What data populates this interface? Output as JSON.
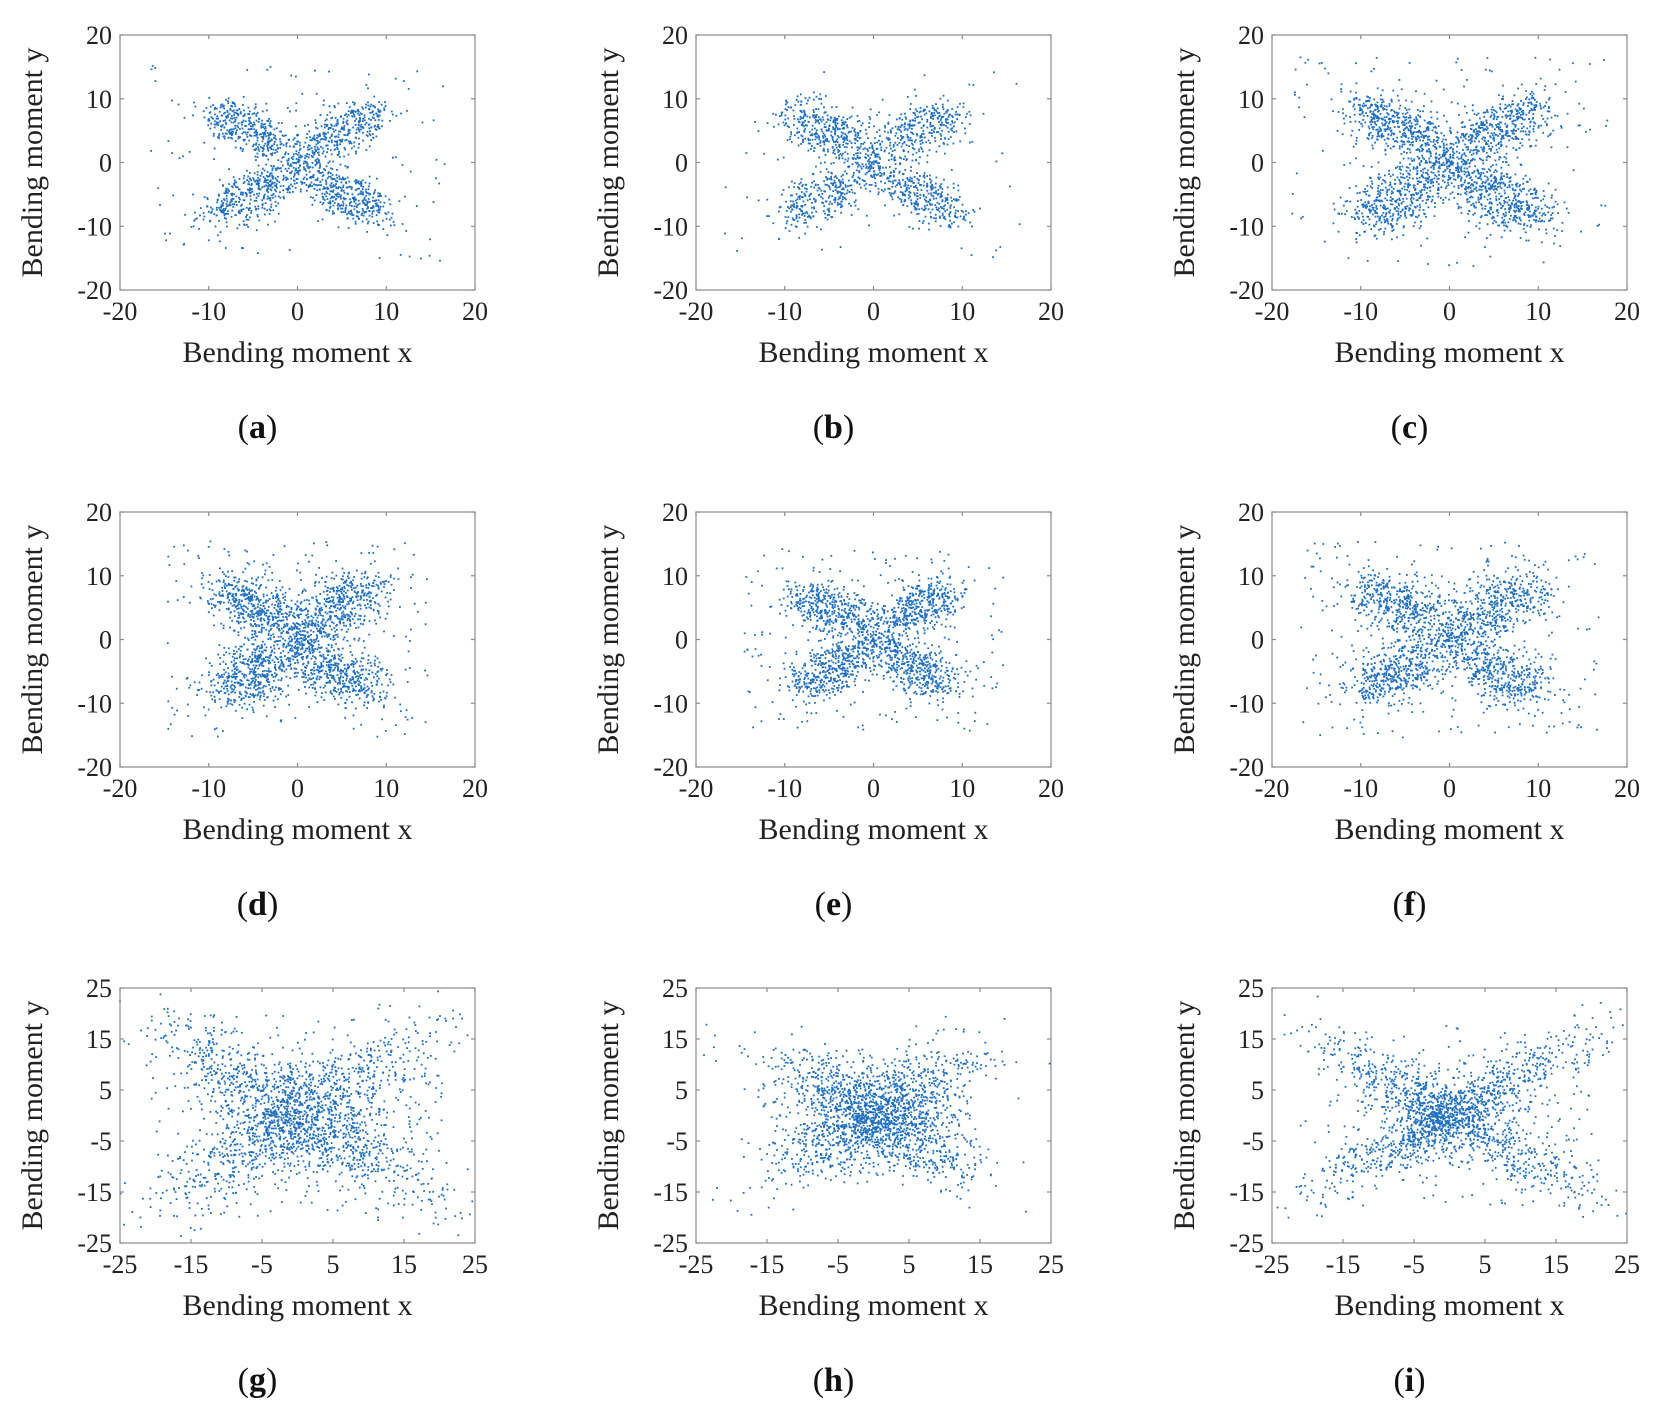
{
  "figure": {
    "marker_color": "#1f6fbf",
    "description_layout": "3x3 grid of scatter plots"
  },
  "chart_data": [
    {
      "type": "scatter",
      "panel": "(a)",
      "panel_letter": "a",
      "xlabel": "Bending moment x",
      "ylabel": "Bending moment y",
      "xlim": [
        -20,
        20
      ],
      "ylim": [
        -20,
        20
      ],
      "xticks": [
        -20,
        -10,
        0,
        10,
        20
      ],
      "yticks": [
        -20,
        -10,
        0,
        10,
        20
      ],
      "xtick_labels": [
        "-20",
        "-10",
        "0",
        "10",
        "20"
      ],
      "ytick_labels": [
        "-20",
        "-10",
        "0",
        "10",
        "20"
      ],
      "pattern": {
        "shape": "four-lobe",
        "lobe_x": 8,
        "lobe_y": 7,
        "spread": 1.6,
        "noise": 0.08,
        "points": 1700,
        "seed": 11
      }
    },
    {
      "type": "scatter",
      "panel": "(b)",
      "panel_letter": "b",
      "xlabel": "Bending moment x",
      "ylabel": "Bending moment y",
      "xlim": [
        -20,
        20
      ],
      "ylim": [
        -20,
        20
      ],
      "xticks": [
        -20,
        -10,
        0,
        10,
        20
      ],
      "yticks": [
        -20,
        -10,
        0,
        10,
        20
      ],
      "xtick_labels": [
        "-20",
        "-10",
        "0",
        "10",
        "20"
      ],
      "ytick_labels": [
        "-20",
        "-10",
        "0",
        "10",
        "20"
      ],
      "pattern": {
        "shape": "four-lobe",
        "lobe_x": 8,
        "lobe_y": 7,
        "spread": 1.9,
        "noise": 0.05,
        "points": 1500,
        "seed": 23
      }
    },
    {
      "type": "scatter",
      "panel": "(c)",
      "panel_letter": "c",
      "xlabel": "Bending moment x",
      "ylabel": "Bending moment y",
      "xlim": [
        -20,
        20
      ],
      "ylim": [
        -20,
        20
      ],
      "xticks": [
        -20,
        -10,
        0,
        10,
        20
      ],
      "yticks": [
        -20,
        -10,
        0,
        10,
        20
      ],
      "xtick_labels": [
        "-20",
        "-10",
        "0",
        "10",
        "20"
      ],
      "ytick_labels": [
        "-20",
        "-10",
        "0",
        "10",
        "20"
      ],
      "pattern": {
        "shape": "four-lobe",
        "lobe_x": 8.5,
        "lobe_y": 7.5,
        "spread": 2.6,
        "noise": 0.06,
        "points": 2200,
        "seed": 37
      }
    },
    {
      "type": "scatter",
      "panel": "(d)",
      "panel_letter": "d",
      "xlabel": "Bending moment x",
      "ylabel": "Bending moment y",
      "xlim": [
        -20,
        20
      ],
      "ylim": [
        -20,
        20
      ],
      "xticks": [
        -20,
        -10,
        0,
        10,
        20
      ],
      "yticks": [
        -20,
        -10,
        0,
        10,
        20
      ],
      "xtick_labels": [
        "-20",
        "-10",
        "0",
        "10",
        "20"
      ],
      "ytick_labels": [
        "-20",
        "-10",
        "0",
        "10",
        "20"
      ],
      "pattern": {
        "shape": "four-lobe",
        "lobe_x": 7,
        "lobe_y": 7,
        "spread": 3.0,
        "noise": 0.1,
        "points": 2200,
        "seed": 41
      }
    },
    {
      "type": "scatter",
      "panel": "(e)",
      "panel_letter": "e",
      "xlabel": "Bending moment x",
      "ylabel": "Bending moment y",
      "xlim": [
        -20,
        20
      ],
      "ylim": [
        -20,
        20
      ],
      "xticks": [
        -20,
        -10,
        0,
        10,
        20
      ],
      "yticks": [
        -20,
        -10,
        0,
        10,
        20
      ],
      "xtick_labels": [
        "-20",
        "-10",
        "0",
        "10",
        "20"
      ],
      "ytick_labels": [
        "-20",
        "-10",
        "0",
        "10",
        "20"
      ],
      "pattern": {
        "shape": "four-lobe",
        "lobe_x": 7,
        "lobe_y": 6.5,
        "spread": 2.4,
        "noise": 0.12,
        "points": 1900,
        "seed": 53
      }
    },
    {
      "type": "scatter",
      "panel": "(f)",
      "panel_letter": "f",
      "xlabel": "Bending moment x",
      "ylabel": "Bending moment y",
      "xlim": [
        -20,
        20
      ],
      "ylim": [
        -20,
        20
      ],
      "xticks": [
        -20,
        -10,
        0,
        10,
        20
      ],
      "yticks": [
        -20,
        -10,
        0,
        10,
        20
      ],
      "xtick_labels": [
        "-20",
        "-10",
        "0",
        "10",
        "20"
      ],
      "ytick_labels": [
        "-20",
        "-10",
        "0",
        "10",
        "20"
      ],
      "pattern": {
        "shape": "four-lobe",
        "lobe_x": 8,
        "lobe_y": 7,
        "spread": 2.8,
        "noise": 0.12,
        "points": 2100,
        "seed": 67
      }
    },
    {
      "type": "scatter",
      "panel": "(g)",
      "panel_letter": "g",
      "xlabel": "Bending moment x",
      "ylabel": "Bending moment y",
      "xlim": [
        -25,
        25
      ],
      "ylim": [
        -25,
        25
      ],
      "xticks": [
        -25,
        -15,
        -5,
        5,
        15,
        25
      ],
      "yticks": [
        -25,
        -15,
        -5,
        5,
        15,
        25
      ],
      "xtick_labels": [
        "-25",
        "-15",
        "-5",
        "5",
        "15",
        "25"
      ],
      "ytick_labels": [
        "-25",
        "-15",
        "-5",
        "5",
        "15",
        "25"
      ],
      "pattern": {
        "shape": "x-diagonal",
        "lobe_x": 10,
        "lobe_y": 9,
        "spread": 3.6,
        "noise": 0.1,
        "points": 2300,
        "seed": 79
      }
    },
    {
      "type": "scatter",
      "panel": "(h)",
      "panel_letter": "h",
      "xlabel": "Bending moment x",
      "ylabel": "Bending moment y",
      "xlim": [
        -25,
        25
      ],
      "ylim": [
        -25,
        25
      ],
      "xticks": [
        -25,
        -15,
        -5,
        5,
        15,
        25
      ],
      "yticks": [
        -25,
        -15,
        -5,
        5,
        15,
        25
      ],
      "xtick_labels": [
        "-25",
        "-15",
        "-5",
        "5",
        "15",
        "25"
      ],
      "ytick_labels": [
        "-25",
        "-15",
        "-5",
        "5",
        "15",
        "25"
      ],
      "pattern": {
        "shape": "x-diagonal",
        "lobe_x": 7,
        "lobe_y": 6,
        "spread": 3.4,
        "noise": 0.12,
        "points": 2100,
        "seed": 83
      }
    },
    {
      "type": "scatter",
      "panel": "(i)",
      "panel_letter": "i",
      "xlabel": "Bending moment x",
      "ylabel": "Bending moment y",
      "xlim": [
        -25,
        25
      ],
      "ylim": [
        -25,
        25
      ],
      "xticks": [
        -25,
        -15,
        -5,
        5,
        15,
        25
      ],
      "yticks": [
        -25,
        -15,
        -5,
        5,
        15,
        25
      ],
      "xtick_labels": [
        "-25",
        "-15",
        "-5",
        "5",
        "15",
        "25"
      ],
      "ytick_labels": [
        "-25",
        "-15",
        "-5",
        "5",
        "15",
        "25"
      ],
      "pattern": {
        "shape": "x-diagonal",
        "lobe_x": 10,
        "lobe_y": 8,
        "spread": 2.6,
        "noise": 0.08,
        "points": 2100,
        "seed": 97
      }
    }
  ]
}
